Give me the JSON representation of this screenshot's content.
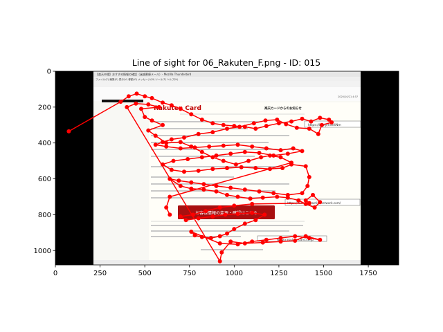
{
  "chart_data": {
    "type": "scatter",
    "title": "Line of sight for 06_Rakuten_F.png - ID: 015",
    "xlabel": "",
    "ylabel": "",
    "xlim": [
      0,
      1920
    ],
    "ylim": [
      1080,
      0
    ],
    "x_ticks": [
      0,
      250,
      500,
      750,
      1000,
      1250,
      1500,
      1750
    ],
    "y_ticks": [
      0,
      200,
      400,
      600,
      800,
      1000
    ],
    "background_image": {
      "extent": [
        0,
        1920,
        1080,
        0
      ],
      "content_x_range": [
        210,
        1715
      ],
      "letterbox_color": "#000000",
      "texts": {
        "window_title": "【楽天市場】おすすめ情報の確認（迷惑郵便メール）- Mozilla Thunderbird",
        "menu": "ファイル(F)  編集(E)  表示(V)  移動(G)  メッセージ(M)  ツール(T)  ヘルプ(H)",
        "brand": "Rakuten Card",
        "notice_heading": "楽天カードからのお知らせ",
        "link_short": "https://bit.ly/hve4Nm",
        "link_long": "https://www.civicactionnetwork.com/",
        "cta_button": "お客様情報の変更・確認はこちら",
        "footer_link": "www.rakuten-card.co.jp",
        "date": "2020/10/21 4:57"
      }
    },
    "series": [
      {
        "color": "#ff0000",
        "points": [
          [
            75,
            335
          ],
          [
            365,
            170
          ],
          [
            410,
            140
          ],
          [
            455,
            125
          ],
          [
            500,
            140
          ],
          [
            540,
            150
          ],
          [
            600,
            175
          ],
          [
            650,
            190
          ],
          [
            700,
            210
          ],
          [
            760,
            240
          ],
          [
            820,
            270
          ],
          [
            880,
            290
          ],
          [
            940,
            300
          ],
          [
            1000,
            305
          ],
          [
            1060,
            310
          ],
          [
            1120,
            320
          ],
          [
            1180,
            305
          ],
          [
            1250,
            290
          ],
          [
            1320,
            280
          ],
          [
            1380,
            265
          ],
          [
            1430,
            280
          ],
          [
            1480,
            260
          ],
          [
            1530,
            270
          ],
          [
            1545,
            285
          ],
          [
            1490,
            300
          ],
          [
            1470,
            350
          ],
          [
            1420,
            320
          ],
          [
            1350,
            315
          ],
          [
            1290,
            295
          ],
          [
            1240,
            270
          ],
          [
            1175,
            275
          ],
          [
            1110,
            290
          ],
          [
            1030,
            310
          ],
          [
            960,
            320
          ],
          [
            880,
            340
          ],
          [
            800,
            350
          ],
          [
            720,
            370
          ],
          [
            650,
            380
          ],
          [
            600,
            395
          ],
          [
            560,
            410
          ],
          [
            620,
            420
          ],
          [
            700,
            430
          ],
          [
            780,
            425
          ],
          [
            860,
            420
          ],
          [
            940,
            415
          ],
          [
            1020,
            410
          ],
          [
            1100,
            420
          ],
          [
            1180,
            430
          ],
          [
            1260,
            440
          ],
          [
            1330,
            430
          ],
          [
            1380,
            445
          ],
          [
            1300,
            460
          ],
          [
            1220,
            470
          ],
          [
            1140,
            455
          ],
          [
            1060,
            450
          ],
          [
            980,
            460
          ],
          [
            900,
            470
          ],
          [
            820,
            480
          ],
          [
            740,
            490
          ],
          [
            660,
            500
          ],
          [
            600,
            520
          ],
          [
            650,
            550
          ],
          [
            720,
            560
          ],
          [
            800,
            555
          ],
          [
            880,
            545
          ],
          [
            960,
            540
          ],
          [
            1040,
            535
          ],
          [
            1120,
            540
          ],
          [
            1200,
            545
          ],
          [
            1270,
            540
          ],
          [
            1320,
            520
          ],
          [
            1400,
            530
          ],
          [
            1420,
            590
          ],
          [
            1410,
            640
          ],
          [
            1380,
            680
          ],
          [
            1300,
            690
          ],
          [
            1220,
            680
          ],
          [
            1140,
            670
          ],
          [
            1060,
            660
          ],
          [
            980,
            650
          ],
          [
            900,
            640
          ],
          [
            830,
            630
          ],
          [
            760,
            620
          ],
          [
            690,
            610
          ],
          [
            640,
            600
          ],
          [
            700,
            640
          ],
          [
            760,
            655
          ],
          [
            830,
            660
          ],
          [
            900,
            670
          ],
          [
            960,
            690
          ],
          [
            1020,
            700
          ],
          [
            1090,
            710
          ],
          [
            1160,
            705
          ],
          [
            1240,
            700
          ],
          [
            1300,
            705
          ],
          [
            1360,
            720
          ],
          [
            1400,
            740
          ],
          [
            1450,
            760
          ],
          [
            1480,
            730
          ],
          [
            1440,
            690
          ],
          [
            1400,
            720
          ],
          [
            1420,
            735
          ],
          [
            1100,
            740
          ],
          [
            1000,
            750
          ],
          [
            920,
            760
          ],
          [
            840,
            780
          ],
          [
            770,
            800
          ],
          [
            700,
            810
          ],
          [
            730,
            830
          ],
          [
            800,
            820
          ],
          [
            880,
            810
          ],
          [
            950,
            800
          ],
          [
            1020,
            795
          ],
          [
            1100,
            790
          ],
          [
            1170,
            800
          ],
          [
            1120,
            830
          ],
          [
            1060,
            850
          ],
          [
            1000,
            880
          ],
          [
            960,
            905
          ],
          [
            920,
            920
          ],
          [
            870,
            930
          ],
          [
            820,
            925
          ],
          [
            780,
            915
          ],
          [
            760,
            895
          ],
          [
            920,
            960
          ],
          [
            1020,
            965
          ],
          [
            1100,
            950
          ],
          [
            1180,
            940
          ],
          [
            1260,
            930
          ],
          [
            1340,
            920
          ],
          [
            1420,
            930
          ],
          [
            1480,
            940
          ],
          [
            1400,
            920
          ],
          [
            1340,
            945
          ],
          [
            1260,
            950
          ],
          [
            1160,
            955
          ],
          [
            1060,
            960
          ],
          [
            980,
            950
          ],
          [
            930,
            1010
          ],
          [
            920,
            1060
          ],
          [
            400,
            200
          ],
          [
            450,
            180
          ],
          [
            520,
            185
          ],
          [
            580,
            200
          ],
          [
            480,
            210
          ],
          [
            500,
            255
          ],
          [
            540,
            275
          ],
          [
            600,
            300
          ],
          [
            520,
            330
          ],
          [
            560,
            360
          ],
          [
            620,
            400
          ],
          [
            700,
            395
          ],
          [
            760,
            420
          ],
          [
            820,
            450
          ],
          [
            880,
            480
          ],
          [
            940,
            500
          ],
          [
            1010,
            520
          ],
          [
            1080,
            500
          ],
          [
            1150,
            480
          ],
          [
            1200,
            470
          ],
          [
            1260,
            480
          ],
          [
            1320,
            510
          ],
          [
            640,
            700
          ],
          [
            620,
            760
          ],
          [
            640,
            800
          ]
        ]
      }
    ]
  }
}
